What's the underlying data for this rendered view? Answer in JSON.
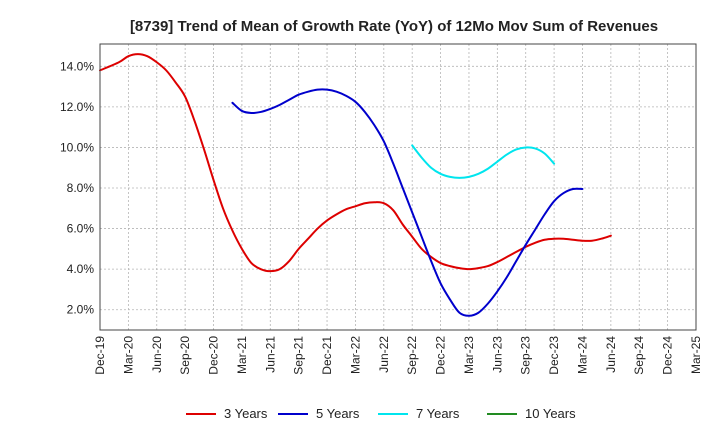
{
  "chart_data": {
    "type": "line",
    "title": "[8739]  Trend of Mean of Growth Rate (YoY) of 12Mo Mov Sum of Revenues",
    "xlabel": "",
    "ylabel": "",
    "ylim": [
      1.0,
      15.1
    ],
    "yticks": [
      2.0,
      4.0,
      6.0,
      8.0,
      10.0,
      12.0,
      14.0
    ],
    "ytick_labels": [
      "2.0%",
      "4.0%",
      "6.0%",
      "8.0%",
      "10.0%",
      "12.0%",
      "14.0%"
    ],
    "x_range": [
      0,
      63
    ],
    "xticks": [
      0,
      3,
      6,
      9,
      12,
      15,
      18,
      21,
      24,
      27,
      30,
      33,
      36,
      39,
      42,
      45,
      48,
      51,
      54,
      57,
      60,
      63
    ],
    "xtick_labels": [
      "Dec-19",
      "Mar-20",
      "Jun-20",
      "Sep-20",
      "Dec-20",
      "Mar-21",
      "Jun-21",
      "Sep-21",
      "Dec-21",
      "Mar-22",
      "Jun-22",
      "Sep-22",
      "Dec-22",
      "Mar-23",
      "Jun-23",
      "Sep-23",
      "Dec-23",
      "Mar-24",
      "Jun-24",
      "Sep-24",
      "Dec-24",
      "Mar-25"
    ],
    "grid": true,
    "legend_position": "bottom",
    "series": [
      {
        "name": "3 Years",
        "color": "#dd0000",
        "points": [
          [
            0,
            13.8
          ],
          [
            2,
            14.2
          ],
          [
            3,
            14.5
          ],
          [
            4,
            14.6
          ],
          [
            5,
            14.5
          ],
          [
            6,
            14.2
          ],
          [
            7,
            13.8
          ],
          [
            8,
            13.2
          ],
          [
            9,
            12.5
          ],
          [
            10,
            11.3
          ],
          [
            11,
            9.9
          ],
          [
            12,
            8.4
          ],
          [
            13,
            7.0
          ],
          [
            14,
            5.9
          ],
          [
            15,
            5.0
          ],
          [
            16,
            4.3
          ],
          [
            17,
            4.0
          ],
          [
            18,
            3.9
          ],
          [
            19,
            4.0
          ],
          [
            20,
            4.4
          ],
          [
            21,
            5.0
          ],
          [
            22,
            5.5
          ],
          [
            23,
            6.0
          ],
          [
            24,
            6.4
          ],
          [
            25,
            6.7
          ],
          [
            26,
            6.95
          ],
          [
            27,
            7.1
          ],
          [
            28,
            7.25
          ],
          [
            29,
            7.3
          ],
          [
            30,
            7.25
          ],
          [
            31,
            6.9
          ],
          [
            32,
            6.2
          ],
          [
            33,
            5.6
          ],
          [
            34,
            5.0
          ],
          [
            35,
            4.6
          ],
          [
            36,
            4.3
          ],
          [
            37,
            4.15
          ],
          [
            38,
            4.05
          ],
          [
            39,
            4.0
          ],
          [
            40,
            4.05
          ],
          [
            41,
            4.15
          ],
          [
            42,
            4.35
          ],
          [
            43,
            4.6
          ],
          [
            44,
            4.85
          ],
          [
            45,
            5.1
          ],
          [
            46,
            5.3
          ],
          [
            47,
            5.45
          ],
          [
            48,
            5.5
          ],
          [
            49,
            5.5
          ],
          [
            50,
            5.45
          ],
          [
            51,
            5.4
          ],
          [
            52,
            5.4
          ],
          [
            53,
            5.5
          ],
          [
            54,
            5.65
          ]
        ]
      },
      {
        "name": "5 Years",
        "color": "#0000cc",
        "points": [
          [
            14,
            12.2
          ],
          [
            15,
            11.8
          ],
          [
            16,
            11.7
          ],
          [
            17,
            11.75
          ],
          [
            18,
            11.9
          ],
          [
            19,
            12.1
          ],
          [
            20,
            12.35
          ],
          [
            21,
            12.6
          ],
          [
            22,
            12.75
          ],
          [
            23,
            12.85
          ],
          [
            24,
            12.85
          ],
          [
            25,
            12.75
          ],
          [
            26,
            12.55
          ],
          [
            27,
            12.25
          ],
          [
            28,
            11.75
          ],
          [
            29,
            11.1
          ],
          [
            30,
            10.3
          ],
          [
            31,
            9.2
          ],
          [
            32,
            8.0
          ],
          [
            33,
            6.8
          ],
          [
            34,
            5.6
          ],
          [
            35,
            4.4
          ],
          [
            36,
            3.3
          ],
          [
            37,
            2.5
          ],
          [
            38,
            1.85
          ],
          [
            39,
            1.7
          ],
          [
            40,
            1.85
          ],
          [
            41,
            2.3
          ],
          [
            42,
            2.9
          ],
          [
            43,
            3.6
          ],
          [
            44,
            4.4
          ],
          [
            45,
            5.2
          ],
          [
            46,
            5.95
          ],
          [
            47,
            6.7
          ],
          [
            48,
            7.35
          ],
          [
            49,
            7.75
          ],
          [
            50,
            7.95
          ],
          [
            51,
            7.95
          ]
        ]
      },
      {
        "name": "7 Years",
        "color": "#00e5ee",
        "points": [
          [
            33,
            10.1
          ],
          [
            34,
            9.5
          ],
          [
            35,
            9.0
          ],
          [
            36,
            8.7
          ],
          [
            37,
            8.55
          ],
          [
            38,
            8.5
          ],
          [
            39,
            8.55
          ],
          [
            40,
            8.7
          ],
          [
            41,
            8.95
          ],
          [
            42,
            9.3
          ],
          [
            43,
            9.65
          ],
          [
            44,
            9.9
          ],
          [
            45,
            10.0
          ],
          [
            46,
            9.95
          ],
          [
            47,
            9.7
          ],
          [
            48,
            9.2
          ]
        ]
      },
      {
        "name": "10 Years",
        "color": "#228b22",
        "points": []
      }
    ]
  }
}
